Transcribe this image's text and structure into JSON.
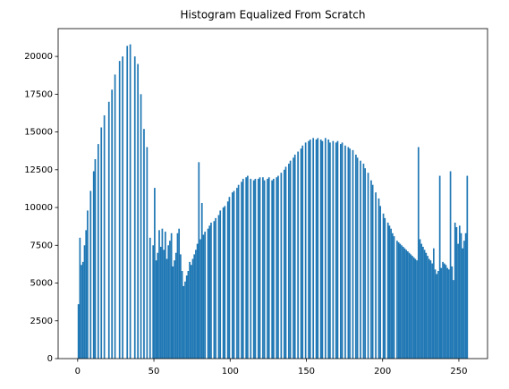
{
  "chart_data": {
    "type": "histogram",
    "title": "Histogram Equalized From Scratch",
    "color": "#1f77b4",
    "bins": [
      0,
      1,
      2,
      3,
      4,
      5,
      6,
      7,
      8,
      9,
      10,
      11,
      12,
      13,
      14,
      15,
      16,
      17,
      18,
      19,
      20,
      21,
      22,
      23,
      24,
      25,
      26,
      27,
      28,
      29,
      30,
      31,
      32,
      33,
      34,
      35,
      36,
      37,
      38,
      39,
      40,
      41,
      42,
      43,
      44,
      45,
      46,
      47,
      48,
      49,
      50,
      51,
      52,
      53,
      54,
      55,
      56,
      57,
      58,
      59,
      60,
      61,
      62,
      63,
      64,
      65,
      66,
      67,
      68,
      69,
      70,
      71,
      72,
      73,
      74,
      75,
      76,
      77,
      78,
      79,
      80,
      81,
      82,
      83,
      84,
      85,
      86,
      87,
      88,
      89,
      90,
      91,
      92,
      93,
      94,
      95,
      96,
      97,
      98,
      99,
      100,
      101,
      102,
      103,
      104,
      105,
      106,
      107,
      108,
      109,
      110,
      111,
      112,
      113,
      114,
      115,
      116,
      117,
      118,
      119,
      120,
      121,
      122,
      123,
      124,
      125,
      126,
      127,
      128,
      129,
      130,
      131,
      132,
      133,
      134,
      135,
      136,
      137,
      138,
      139,
      140,
      141,
      142,
      143,
      144,
      145,
      146,
      147,
      148,
      149,
      150,
      151,
      152,
      153,
      154,
      155,
      156,
      157,
      158,
      159,
      160,
      161,
      162,
      163,
      164,
      165,
      166,
      167,
      168,
      169,
      170,
      171,
      172,
      173,
      174,
      175,
      176,
      177,
      178,
      179,
      180,
      181,
      182,
      183,
      184,
      185,
      186,
      187,
      188,
      189,
      190,
      191,
      192,
      193,
      194,
      195,
      196,
      197,
      198,
      199,
      200,
      201,
      202,
      203,
      204,
      205,
      206,
      207,
      208,
      209,
      210,
      211,
      212,
      213,
      214,
      215,
      216,
      217,
      218,
      219,
      220,
      221,
      222,
      223,
      224,
      225,
      226,
      227,
      228,
      229,
      230,
      231,
      232,
      233,
      234,
      235,
      236,
      237,
      238,
      239,
      240,
      241,
      242,
      243,
      244,
      245,
      246,
      247,
      248,
      249,
      250,
      251,
      252,
      253,
      254,
      255,
      256
    ],
    "values": [
      3600,
      8000,
      6200,
      6400,
      7500,
      8500,
      9800,
      0,
      11100,
      0,
      12400,
      13200,
      0,
      14200,
      0,
      15300,
      0,
      16100,
      0,
      0,
      17000,
      0,
      17800,
      0,
      18800,
      0,
      0,
      19700,
      0,
      20000,
      0,
      0,
      20700,
      0,
      20800,
      0,
      0,
      20000,
      0,
      19500,
      0,
      17500,
      0,
      15200,
      0,
      14000,
      0,
      8000,
      0,
      7500,
      11300,
      6500,
      7000,
      8500,
      7400,
      8600,
      7200,
      8400,
      6600,
      7500,
      7800,
      8300,
      6100,
      6500,
      7000,
      8300,
      8600,
      6900,
      5800,
      4800,
      5100,
      5500,
      5800,
      6400,
      6200,
      6600,
      6900,
      7200,
      7600,
      13000,
      7900,
      10300,
      8200,
      8400,
      0,
      8600,
      8800,
      9000,
      0,
      9100,
      9300,
      0,
      9500,
      9800,
      0,
      10000,
      10100,
      0,
      10400,
      10700,
      0,
      11000,
      11100,
      0,
      11300,
      11500,
      0,
      11700,
      11900,
      0,
      12000,
      12100,
      0,
      11900,
      0,
      11800,
      11900,
      0,
      11900,
      12000,
      0,
      12000,
      11800,
      0,
      11900,
      12000,
      0,
      11800,
      11900,
      0,
      12000,
      12100,
      0,
      12300,
      0,
      12500,
      12700,
      0,
      12900,
      13100,
      0,
      13300,
      13500,
      0,
      13700,
      0,
      13900,
      14100,
      0,
      14300,
      0,
      14400,
      14500,
      0,
      14600,
      0,
      14500,
      14600,
      0,
      14500,
      14400,
      0,
      14600,
      0,
      14500,
      14300,
      0,
      14400,
      0,
      14300,
      14400,
      0,
      14200,
      14300,
      0,
      14100,
      0,
      14000,
      13900,
      0,
      13800,
      0,
      13500,
      13300,
      0,
      13100,
      0,
      12900,
      12600,
      0,
      12300,
      0,
      11800,
      11500,
      0,
      11000,
      0,
      10600,
      10100,
      0,
      9600,
      9300,
      0,
      9000,
      8800,
      8600,
      8300,
      8100,
      0,
      7800,
      7700,
      7600,
      7500,
      7400,
      7300,
      7200,
      7100,
      7000,
      6900,
      6800,
      6700,
      6600,
      6500,
      14000,
      7900,
      7600,
      7400,
      7200,
      7000,
      6800,
      6600,
      6500,
      6300,
      7300,
      5900,
      5600,
      5800,
      12100,
      6000,
      6400,
      6300,
      6200,
      6000,
      5900,
      12400,
      6100,
      5200,
      9000,
      8700,
      7600,
      8800,
      8300,
      7300,
      7800,
      8300,
      12100
    ],
    "xlim": [
      -12.8,
      268.8
    ],
    "xticks": [
      0,
      50,
      100,
      150,
      200,
      250
    ],
    "ylim": [
      0,
      21840
    ],
    "yticks": [
      0,
      2500,
      5000,
      7500,
      10000,
      12500,
      15000,
      17500,
      20000
    ]
  }
}
